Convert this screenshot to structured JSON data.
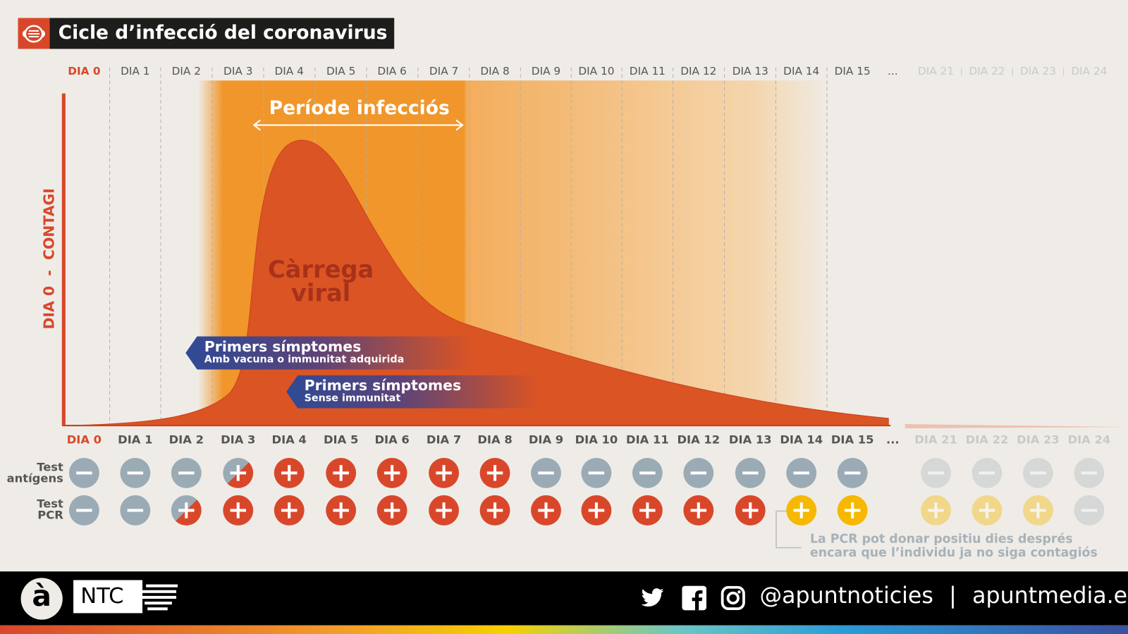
{
  "title": "Cicle d’infecció del coronavirus",
  "days": [
    "DIA 0",
    "DIA 1",
    "DIA 2",
    "DIA 3",
    "DIA 4",
    "DIA 5",
    "DIA 6",
    "DIA 7",
    "DIA 8",
    "DIA 9",
    "DIA 10",
    "DIA 11",
    "DIA 12",
    "DIA 13",
    "DIA 14",
    "DIA 15",
    "...",
    "DIA 21",
    "DIA 22",
    "DIA 23",
    "DIA 24"
  ],
  "faded_days": [
    "DIA 21",
    "DIA 22",
    "DIA 23",
    "DIA 24"
  ],
  "y_axis_label": "DIA 0  -  CONTAGI",
  "infectious_period_label": "Període infecciós",
  "viral_load_label": [
    "Càrrega",
    "viral"
  ],
  "banners": [
    {
      "title": "Primers símptomes",
      "subtitle": "Amb vacuna o immunitat adquirida"
    },
    {
      "title": "Primers símptomes",
      "subtitle": "Sense immunitat"
    }
  ],
  "tests": [
    {
      "label": [
        "Test",
        "antígens"
      ],
      "results": [
        "neg",
        "neg",
        "neg",
        "mixed",
        "pos",
        "pos",
        "pos",
        "pos",
        "pos",
        "neg",
        "neg",
        "neg",
        "neg",
        "neg",
        "neg",
        "neg",
        null,
        "neg",
        "neg",
        "neg",
        "neg"
      ]
    },
    {
      "label": [
        "Test",
        "PCR"
      ],
      "results": [
        "neg",
        "neg",
        "mixed",
        "pos",
        "pos",
        "pos",
        "pos",
        "pos",
        "pos",
        "pos",
        "pos",
        "pos",
        "pos",
        "pos",
        "late",
        "late",
        null,
        "late",
        "late",
        "late",
        "neg"
      ]
    }
  ],
  "pcr_note": [
    "La PCR pot donar positiu dies després",
    "encara que l’individu ja no siga contagiós"
  ],
  "footer": {
    "logo_letter": "à",
    "brand": "NTC",
    "handle": "@apuntnoticies",
    "separator": "|",
    "website": "apuntmedia.es"
  },
  "colors": {
    "positive": "#d9472b",
    "negative": "#9aabb5",
    "late_positive": "#f6b800",
    "infectious": "#f0962a",
    "viral_load": "#db5424",
    "banner": "#2e4a96",
    "title_bg": "#1d1d1b"
  }
}
